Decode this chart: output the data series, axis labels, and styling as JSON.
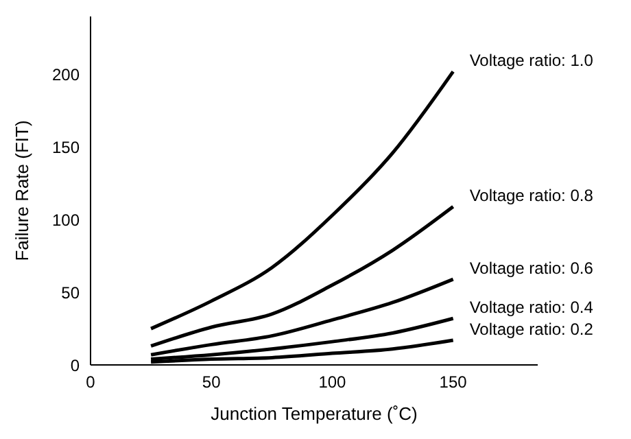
{
  "chart_data": {
    "type": "line",
    "xlabel": "Junction Temperature (˚C)",
    "ylabel": "Failure Rate (FIT)",
    "x": [
      25,
      50,
      75,
      100,
      125,
      150
    ],
    "series": [
      {
        "name": "Voltage ratio: 1.0",
        "color": "#000000",
        "values": [
          25,
          44,
          67,
          103,
          146,
          202
        ]
      },
      {
        "name": "Voltage ratio: 0.8",
        "color": "#000000",
        "values": [
          13,
          26,
          35,
          55,
          79,
          109
        ]
      },
      {
        "name": "Voltage ratio: 0.6",
        "color": "#000000",
        "values": [
          7,
          14,
          20,
          31,
          43,
          59
        ]
      },
      {
        "name": "Voltage ratio: 0.4",
        "color": "#000000",
        "values": [
          4,
          7,
          11,
          16,
          22,
          32
        ]
      },
      {
        "name": "Voltage ratio: 0.2",
        "color": "#000000",
        "values": [
          2,
          4,
          5,
          8,
          11,
          17
        ]
      }
    ],
    "xlim": [
      0,
      185
    ],
    "xticks": [
      0,
      50,
      100,
      150
    ],
    "ylim": [
      0,
      240
    ],
    "yticks": [
      0,
      50,
      100,
      150,
      200
    ],
    "grid": false,
    "legend": false,
    "marker": "none",
    "line_style": "solid"
  }
}
